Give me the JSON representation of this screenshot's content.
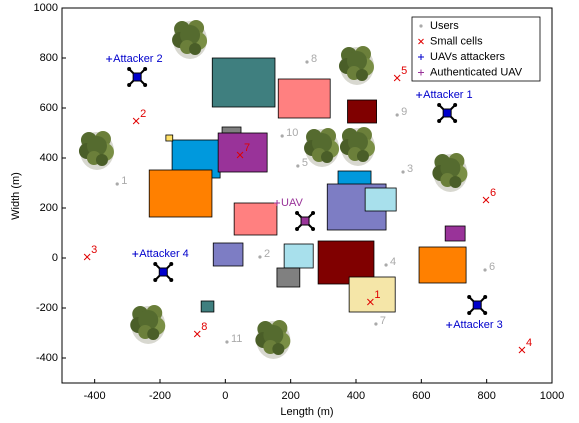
{
  "chart_data": {
    "type": "scatter",
    "xlabel": "Length  (m)",
    "ylabel": "Width (m)",
    "xlim": [
      -500,
      1000
    ],
    "ylim": [
      -500,
      1000
    ],
    "xticks": [
      -400,
      -200,
      0,
      200,
      400,
      600,
      800,
      1000
    ],
    "yticks": [
      -400,
      -200,
      0,
      200,
      400,
      600,
      800,
      1000
    ],
    "legend": "upper right",
    "series": [
      {
        "name": "Users",
        "color": "#aaaaaa",
        "marker": "dot",
        "x": [
          -331,
          106,
          544,
          492,
          222,
          795,
          461,
          250,
          526,
          174,
          5
        ],
        "y": [
          296,
          4,
          344,
          -28,
          368,
          -48,
          -264,
          784,
          572,
          488,
          -336
        ],
        "labels": [
          "1",
          "2",
          "3",
          "4",
          "5",
          "6",
          "7",
          "8",
          "9",
          "10",
          "11"
        ]
      },
      {
        "name": "Small cells",
        "color": "#e00000",
        "marker": "x",
        "x": [
          444,
          -273,
          -423,
          908,
          526,
          798,
          45,
          -86
        ],
        "y": [
          -168,
          556,
          12,
          -360,
          728,
          240,
          420,
          -296
        ],
        "labels": [
          "1",
          "2",
          "3",
          "4",
          "5",
          "6",
          "7",
          "8"
        ]
      },
      {
        "name": "UAVs attackers",
        "color": "#0000cc",
        "marker": "plus",
        "x": [
          679,
          -270,
          771,
          -190
        ],
        "y": [
          580,
          724,
          -188,
          -56
        ],
        "labels": [
          "Attacker 1",
          "Attacker 2",
          "Attacker 3",
          "Attacker 4"
        ]
      },
      {
        "name": "Authenticated UAV",
        "color": "#993399",
        "marker": "plus",
        "x": [
          244
        ],
        "y": [
          148
        ],
        "labels": [
          "UAV"
        ]
      }
    ],
    "buildings": [
      {
        "x": [
          -40,
          152
        ],
        "y": [
          604,
          800
        ],
        "color": "#3f7f7f"
      },
      {
        "x": [
          162,
          321
        ],
        "y": [
          560,
          716
        ],
        "color": "#ff8080"
      },
      {
        "x": [
          374,
          463
        ],
        "y": [
          540,
          632
        ],
        "color": "#800000"
      },
      {
        "x": [
          -10,
          48
        ],
        "y": [
          500,
          524
        ],
        "color": "#808080"
      },
      {
        "x": [
          -163,
          -16
        ],
        "y": [
          320,
          472
        ],
        "color": "#0099dd"
      },
      {
        "x": [
          -182,
          -161
        ],
        "y": [
          468,
          492
        ],
        "color": "#ffe066"
      },
      {
        "x": [
          -22,
          128
        ],
        "y": [
          344,
          500
        ],
        "color": "#993399"
      },
      {
        "x": [
          -233,
          -41
        ],
        "y": [
          164,
          352
        ],
        "color": "#ff8000"
      },
      {
        "x": [
          27,
          158
        ],
        "y": [
          92,
          220
        ],
        "color": "#ff8080"
      },
      {
        "x": [
          345,
          446
        ],
        "y": [
          292,
          348
        ],
        "color": "#0099dd"
      },
      {
        "x": [
          312,
          492
        ],
        "y": [
          112,
          296
        ],
        "color": "#7d7dc4"
      },
      {
        "x": [
          428,
          523
        ],
        "y": [
          188,
          280
        ],
        "color": "#a8e0ec"
      },
      {
        "x": [
          673,
          734
        ],
        "y": [
          68,
          128
        ],
        "color": "#993399"
      },
      {
        "x": [
          -37,
          54
        ],
        "y": [
          -32,
          60
        ],
        "color": "#7d7dc4"
      },
      {
        "x": [
          180,
          269
        ],
        "y": [
          -40,
          56
        ],
        "color": "#a8e0ec"
      },
      {
        "x": [
          284,
          455
        ],
        "y": [
          -104,
          68
        ],
        "color": "#800000"
      },
      {
        "x": [
          158,
          228
        ],
        "y": [
          -116,
          -40
        ],
        "color": "#808080"
      },
      {
        "x": [
          593,
          737
        ],
        "y": [
          -100,
          44
        ],
        "color": "#ff8000"
      },
      {
        "x": [
          379,
          520
        ],
        "y": [
          -216,
          -76
        ],
        "color": "#f5e6a8"
      },
      {
        "x": [
          -74,
          -35
        ],
        "y": [
          -216,
          -172
        ],
        "color": "#3f7f7f"
      }
    ],
    "trees": {
      "x": [
        -108,
        403,
        -393,
        296,
        406,
        689,
        -236,
        147
      ],
      "y": [
        884,
        780,
        440,
        452,
        456,
        352,
        -256,
        -316
      ]
    }
  }
}
